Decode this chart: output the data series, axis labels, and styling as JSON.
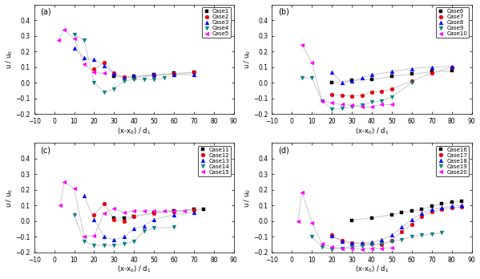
{
  "panels": [
    {
      "label": "(a)",
      "cases": [
        {
          "name": "Case1",
          "color": "#000000",
          "marker": "s",
          "x": [
            30,
            40,
            50,
            60,
            70
          ],
          "y": [
            0.04,
            0.04,
            0.05,
            0.06,
            0.065
          ]
        },
        {
          "name": "Case2",
          "color": "#e8000d",
          "marker": "o",
          "x": [
            20,
            25,
            30,
            35,
            40,
            50,
            60,
            70
          ],
          "y": [
            0.085,
            0.13,
            0.06,
            0.035,
            0.03,
            0.045,
            0.055,
            0.065
          ]
        },
        {
          "name": "Case3",
          "color": "#0000ff",
          "marker": "^",
          "x": [
            10,
            15,
            20,
            25,
            30,
            35,
            40,
            50,
            60,
            70
          ],
          "y": [
            0.22,
            0.16,
            0.15,
            0.11,
            0.055,
            0.03,
            0.04,
            0.05,
            0.05,
            0.05
          ]
        },
        {
          "name": "Case4",
          "color": "#008080",
          "marker": "v",
          "x": [
            10,
            15,
            20,
            25,
            30,
            35,
            40,
            45,
            50,
            55
          ],
          "y": [
            0.31,
            0.27,
            0.0,
            -0.06,
            -0.04,
            0.01,
            0.02,
            0.02,
            0.02,
            0.03
          ]
        },
        {
          "name": "Case5",
          "color": "#ff00ff",
          "marker": "<",
          "x": [
            2,
            5,
            10,
            15,
            20,
            25
          ],
          "y": [
            0.27,
            0.34,
            0.28,
            0.12,
            0.065,
            0.06
          ]
        }
      ],
      "ylim": [
        -0.2,
        0.5
      ],
      "yticks": [
        -0.2,
        -0.1,
        0.0,
        0.1,
        0.2,
        0.3,
        0.4
      ]
    },
    {
      "label": "(b)",
      "cases": [
        {
          "name": "Case6",
          "color": "#000000",
          "marker": "s",
          "x": [
            20,
            30,
            40,
            50,
            60,
            70,
            80
          ],
          "y": [
            0.0,
            0.015,
            0.02,
            0.04,
            0.055,
            0.07,
            0.075
          ]
        },
        {
          "name": "Case7",
          "color": "#e8000d",
          "marker": "o",
          "x": [
            20,
            25,
            30,
            35,
            40,
            45,
            50,
            60,
            70,
            80
          ],
          "y": [
            -0.075,
            -0.08,
            -0.085,
            -0.08,
            -0.06,
            -0.055,
            -0.04,
            0.01,
            0.06,
            0.1
          ]
        },
        {
          "name": "Case8",
          "color": "#0000ff",
          "marker": "^",
          "x": [
            20,
            25,
            30,
            35,
            40,
            50,
            60,
            70,
            80
          ],
          "y": [
            0.065,
            0.0,
            0.01,
            0.03,
            0.05,
            0.07,
            0.09,
            0.1,
            0.105
          ]
        },
        {
          "name": "Case9",
          "color": "#008080",
          "marker": "v",
          "x": [
            5,
            10,
            15,
            20,
            25,
            30,
            35,
            40,
            45,
            50,
            60
          ],
          "y": [
            0.03,
            0.03,
            -0.115,
            -0.17,
            -0.165,
            -0.155,
            -0.145,
            -0.125,
            -0.115,
            -0.09,
            0.0
          ]
        },
        {
          "name": "Case10",
          "color": "#ff00ff",
          "marker": "<",
          "x": [
            5,
            10,
            15,
            20,
            25,
            30,
            35,
            40,
            45,
            50
          ],
          "y": [
            0.24,
            0.13,
            -0.115,
            -0.13,
            -0.14,
            -0.145,
            -0.155,
            -0.155,
            -0.14,
            -0.14
          ]
        }
      ],
      "ylim": [
        -0.2,
        0.5
      ],
      "yticks": [
        -0.2,
        -0.1,
        0.0,
        0.1,
        0.2,
        0.3,
        0.4
      ]
    },
    {
      "label": "(c)",
      "cases": [
        {
          "name": "Case11",
          "color": "#000000",
          "marker": "s",
          "x": [
            30,
            35,
            40,
            50,
            60,
            70,
            75
          ],
          "y": [
            0.02,
            0.02,
            0.03,
            0.055,
            0.065,
            0.075,
            0.075
          ]
        },
        {
          "name": "Case12",
          "color": "#e8000d",
          "marker": "o",
          "x": [
            20,
            25,
            30,
            35,
            40,
            50,
            60,
            70
          ],
          "y": [
            0.04,
            0.11,
            0.01,
            0.0,
            0.03,
            0.05,
            0.06,
            0.07
          ]
        },
        {
          "name": "Case13",
          "color": "#0000ff",
          "marker": "^",
          "x": [
            15,
            20,
            25,
            30,
            35,
            40,
            45,
            50,
            60,
            70
          ],
          "y": [
            0.16,
            0.01,
            -0.1,
            -0.12,
            -0.1,
            -0.05,
            -0.03,
            0.01,
            0.04,
            0.055
          ]
        },
        {
          "name": "Case14",
          "color": "#008080",
          "marker": "v",
          "x": [
            10,
            15,
            20,
            25,
            30,
            35,
            40,
            45,
            50,
            60
          ],
          "y": [
            0.04,
            -0.13,
            -0.155,
            -0.155,
            -0.155,
            -0.145,
            -0.13,
            -0.065,
            -0.045,
            -0.04
          ]
        },
        {
          "name": "Case15",
          "color": "#ff00ff",
          "marker": "<",
          "x": [
            3,
            5,
            10,
            15,
            20,
            25,
            30,
            35,
            40,
            45,
            50,
            55,
            60,
            65
          ],
          "y": [
            0.1,
            0.25,
            0.21,
            -0.1,
            -0.095,
            0.05,
            0.08,
            0.055,
            0.065,
            0.065,
            0.065,
            0.065,
            0.065,
            0.065
          ]
        }
      ],
      "ylim": [
        -0.2,
        0.5
      ],
      "yticks": [
        -0.2,
        -0.1,
        0.0,
        0.1,
        0.2,
        0.3,
        0.4
      ]
    },
    {
      "label": "(d)",
      "cases": [
        {
          "name": "Case16",
          "color": "#000000",
          "marker": "s",
          "x": [
            30,
            40,
            50,
            55,
            60,
            65,
            70,
            75,
            80,
            85
          ],
          "y": [
            0.005,
            0.02,
            0.04,
            0.055,
            0.065,
            0.075,
            0.095,
            0.11,
            0.12,
            0.125
          ]
        },
        {
          "name": "Case17",
          "color": "#e8000d",
          "marker": "o",
          "x": [
            20,
            25,
            30,
            35,
            40,
            45,
            50,
            55,
            60,
            65,
            70,
            75,
            80,
            85
          ],
          "y": [
            -0.09,
            -0.125,
            -0.14,
            -0.145,
            -0.145,
            -0.15,
            -0.125,
            -0.07,
            -0.02,
            0.03,
            0.06,
            0.075,
            0.085,
            0.09
          ]
        },
        {
          "name": "Case18",
          "color": "#0000ff",
          "marker": "^",
          "x": [
            20,
            25,
            30,
            35,
            40,
            45,
            50,
            55,
            60,
            65,
            70,
            75,
            80,
            85
          ],
          "y": [
            -0.095,
            -0.13,
            -0.14,
            -0.14,
            -0.135,
            -0.12,
            -0.09,
            -0.04,
            0.01,
            0.05,
            0.075,
            0.085,
            0.095,
            0.1
          ]
        },
        {
          "name": "Case19",
          "color": "#008080",
          "marker": "v",
          "x": [
            10,
            15,
            20,
            25,
            30,
            35,
            40,
            45,
            50,
            55,
            60,
            65,
            70,
            75
          ],
          "y": [
            -0.1,
            -0.165,
            -0.18,
            -0.175,
            -0.165,
            -0.16,
            -0.15,
            -0.145,
            -0.13,
            -0.12,
            -0.1,
            -0.09,
            -0.085,
            -0.075
          ]
        },
        {
          "name": "Case20",
          "color": "#ff00ff",
          "marker": "<",
          "x": [
            3,
            5,
            10,
            15,
            20,
            25,
            30,
            35,
            40,
            45,
            50
          ],
          "y": [
            0.0,
            0.185,
            -0.01,
            -0.145,
            -0.165,
            -0.175,
            -0.175,
            -0.18,
            -0.175,
            -0.175,
            -0.17
          ]
        }
      ],
      "ylim": [
        -0.2,
        0.5
      ],
      "yticks": [
        -0.2,
        -0.1,
        0.0,
        0.1,
        0.2,
        0.3,
        0.4
      ]
    }
  ],
  "xlim": [
    -10,
    90
  ],
  "xticks": [
    -10,
    0,
    10,
    20,
    30,
    40,
    50,
    60,
    70,
    80,
    90
  ],
  "xlabel": "(x-x$_0$) / d$_1$",
  "ylabel": "u / u$_0$",
  "line_color": "#c8c8c8",
  "bg_color": "#ffffff"
}
